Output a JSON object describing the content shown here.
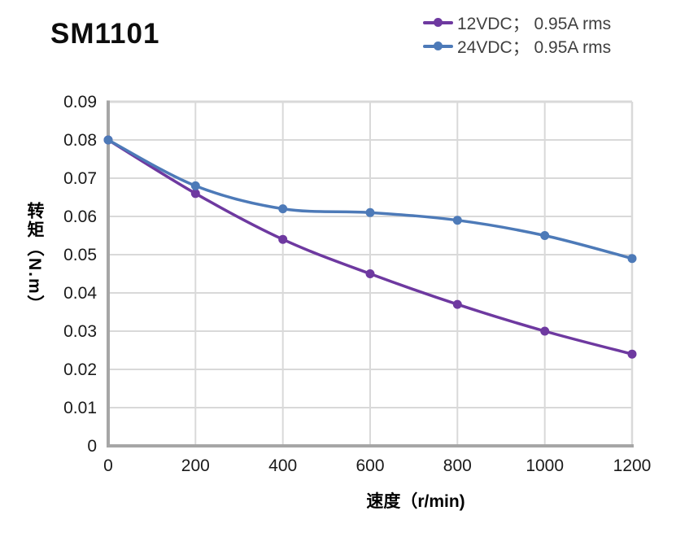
{
  "page": {
    "title": "SM1101"
  },
  "legend": {
    "items": [
      {
        "label": "12VDC； 0.95A rms",
        "color": "#6E39A0"
      },
      {
        "label": "24VDC； 0.95A rms",
        "color": "#4D7AB8"
      }
    ]
  },
  "chart_data": {
    "type": "line",
    "title": "SM1101",
    "xlabel": "速度（r/min)",
    "ylabel": "转矩（N.m）",
    "x": [
      0,
      200,
      400,
      600,
      800,
      1000,
      1200
    ],
    "series": [
      {
        "name": "12VDC； 0.95A rms",
        "color": "#6E39A0",
        "marker": "circle",
        "values": [
          0.08,
          0.066,
          0.054,
          0.045,
          0.037,
          0.03,
          0.024
        ]
      },
      {
        "name": "24VDC； 0.95A rms",
        "color": "#4D7AB8",
        "marker": "circle",
        "values": [
          0.08,
          0.068,
          0.062,
          0.061,
          0.059,
          0.055,
          0.049
        ]
      }
    ],
    "xlim": [
      0,
      1200
    ],
    "ylim": [
      0,
      0.09
    ],
    "x_tick_labels": [
      "0",
      "200",
      "400",
      "600",
      "800",
      "1000",
      "1200"
    ],
    "y_tick_labels": [
      "0",
      "0.01",
      "0.02",
      "0.03",
      "0.04",
      "0.05",
      "0.06",
      "0.07",
      "0.08",
      "0.09"
    ],
    "grid": true,
    "legend_position": "top-right",
    "colors": {
      "grid": "#D9D9D9",
      "axis": "#A6A6A6",
      "tick_text": "#1A1A1A",
      "legend_text": "#404040"
    }
  }
}
